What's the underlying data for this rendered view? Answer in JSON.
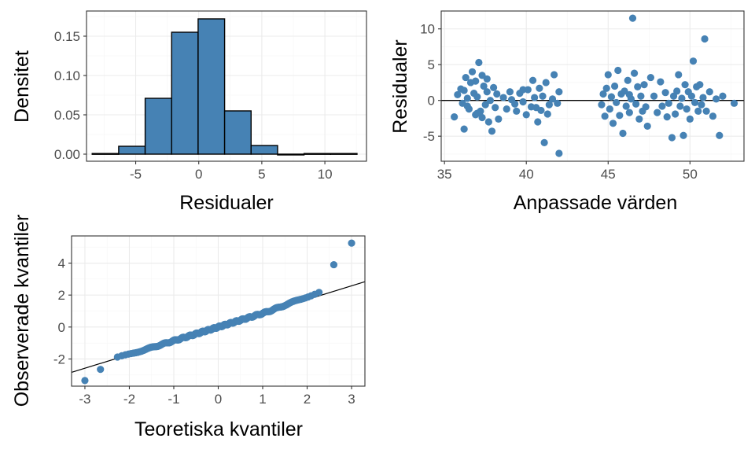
{
  "colors": {
    "accent": "#4682b4",
    "ink": "#000000"
  },
  "chart_data": [
    {
      "type": "bar",
      "subtype": "histogram",
      "xlabel": "Residualer",
      "ylabel": "Densitet",
      "xlim": [
        -8.9,
        13.3
      ],
      "ylim": [
        -0.009,
        0.182
      ],
      "xticks": [
        -5,
        0,
        5,
        10
      ],
      "xtick_labels": [
        "-5",
        "0",
        "5",
        "10"
      ],
      "yticks": [
        0.0,
        0.05,
        0.1,
        0.15
      ],
      "ytick_labels": [
        "0.00",
        "0.05",
        "0.10",
        "0.15"
      ],
      "bins": [
        {
          "x0": -8.45,
          "x1": -6.35,
          "density": 0.0008
        },
        {
          "x0": -6.35,
          "x1": -4.25,
          "density": 0.01
        },
        {
          "x0": -4.25,
          "x1": -2.15,
          "density": 0.071
        },
        {
          "x0": -2.15,
          "x1": -0.05,
          "density": 0.155
        },
        {
          "x0": -0.05,
          "x1": 2.05,
          "density": 0.172
        },
        {
          "x0": 2.05,
          "x1": 4.15,
          "density": 0.055
        },
        {
          "x0": 4.15,
          "x1": 6.25,
          "density": 0.011
        },
        {
          "x0": 6.25,
          "x1": 8.35,
          "density": 0.0
        },
        {
          "x0": 8.35,
          "x1": 10.45,
          "density": 0.0008
        },
        {
          "x0": 10.45,
          "x1": 12.55,
          "density": 0.0008
        }
      ],
      "fill": "#4682b4",
      "grid": true
    },
    {
      "type": "scatter",
      "xlabel": "Anpassade värden",
      "ylabel": "Residualer",
      "xlim": [
        34.8,
        53.3
      ],
      "ylim": [
        -8.5,
        12.5
      ],
      "xticks": [
        35,
        40,
        45,
        50
      ],
      "xtick_labels": [
        "35",
        "40",
        "45",
        "50"
      ],
      "yticks": [
        -5,
        0,
        5,
        10
      ],
      "ytick_labels": [
        "-5",
        "0",
        "5",
        "10"
      ],
      "hline": 0,
      "grid": true,
      "points": [
        [
          35.6,
          -2.3
        ],
        [
          35.8,
          0.8
        ],
        [
          36.0,
          1.6
        ],
        [
          36.1,
          -0.4
        ],
        [
          36.2,
          -4.0
        ],
        [
          36.3,
          3.2
        ],
        [
          36.4,
          0.3
        ],
        [
          36.5,
          -1.2
        ],
        [
          36.6,
          2.5
        ],
        [
          36.7,
          4.0
        ],
        [
          36.8,
          1.0
        ],
        [
          36.9,
          -2.0
        ],
        [
          37.0,
          0.5
        ],
        [
          37.1,
          5.3
        ],
        [
          37.2,
          -1.5
        ],
        [
          37.3,
          3.5
        ],
        [
          37.4,
          2.0
        ],
        [
          37.5,
          -0.6
        ],
        [
          37.6,
          1.2
        ],
        [
          37.7,
          -3.0
        ],
        [
          37.8,
          0.0
        ],
        [
          37.9,
          -4.3
        ],
        [
          38.0,
          1.8
        ],
        [
          38.1,
          -1.0
        ],
        [
          38.2,
          0.9
        ],
        [
          38.3,
          -2.6
        ],
        [
          36.4,
          -0.8
        ],
        [
          36.9,
          2.7
        ],
        [
          37.3,
          -2.4
        ],
        [
          37.6,
          3.0
        ],
        [
          37.0,
          -1.8
        ],
        [
          36.2,
          1.4
        ],
        [
          38.6,
          0.4
        ],
        [
          38.8,
          -1.2
        ],
        [
          39.0,
          1.2
        ],
        [
          39.1,
          0.1
        ],
        [
          39.3,
          -0.5
        ],
        [
          39.4,
          -1.5
        ],
        [
          39.6,
          1.0
        ],
        [
          39.8,
          -0.2
        ],
        [
          40.0,
          -2.0
        ],
        [
          40.1,
          1.5
        ],
        [
          40.3,
          -0.9
        ],
        [
          40.4,
          2.8
        ],
        [
          40.5,
          0.4
        ],
        [
          40.7,
          -3.0
        ],
        [
          40.8,
          1.7
        ],
        [
          40.9,
          -1.4
        ],
        [
          41.0,
          0.6
        ],
        [
          41.1,
          -5.9
        ],
        [
          41.2,
          2.5
        ],
        [
          41.3,
          -1.9
        ],
        [
          41.4,
          -0.6
        ],
        [
          41.6,
          0.2
        ],
        [
          41.7,
          3.6
        ],
        [
          41.9,
          -0.4
        ],
        [
          42.0,
          -7.4
        ],
        [
          42.0,
          1.2
        ],
        [
          39.8,
          1.5
        ],
        [
          40.6,
          -1.0
        ],
        [
          44.6,
          -0.6
        ],
        [
          44.7,
          0.9
        ],
        [
          44.8,
          -2.2
        ],
        [
          44.9,
          1.7
        ],
        [
          45.0,
          3.6
        ],
        [
          45.1,
          -1.2
        ],
        [
          45.2,
          0.5
        ],
        [
          45.3,
          -3.2
        ],
        [
          45.4,
          2.0
        ],
        [
          45.5,
          -0.3
        ],
        [
          45.6,
          4.2
        ],
        [
          45.7,
          -2.1
        ],
        [
          45.8,
          0.9
        ],
        [
          45.9,
          -4.6
        ],
        [
          46.0,
          1.3
        ],
        [
          46.1,
          -0.8
        ],
        [
          46.2,
          2.8
        ],
        [
          46.3,
          -1.7
        ],
        [
          46.4,
          0.2
        ],
        [
          46.5,
          11.5
        ],
        [
          46.6,
          3.8
        ],
        [
          46.7,
          -0.5
        ],
        [
          46.8,
          1.9
        ],
        [
          46.9,
          -2.6
        ],
        [
          47.0,
          0.6
        ],
        [
          47.1,
          -1.5
        ],
        [
          47.2,
          2.2
        ],
        [
          47.4,
          -3.6
        ],
        [
          47.6,
          3.2
        ],
        [
          47.8,
          0.6
        ],
        [
          48.0,
          -1.7
        ],
        [
          48.2,
          2.6
        ],
        [
          48.3,
          -0.8
        ],
        [
          48.5,
          1.1
        ],
        [
          48.6,
          -2.3
        ],
        [
          48.7,
          -0.4
        ],
        [
          48.9,
          -5.2
        ],
        [
          49.0,
          0.6
        ],
        [
          49.1,
          -1.9
        ],
        [
          49.2,
          1.3
        ],
        [
          49.3,
          3.6
        ],
        [
          49.4,
          -0.8
        ],
        [
          49.5,
          0.3
        ],
        [
          49.6,
          -4.9
        ],
        [
          49.7,
          2.2
        ],
        [
          49.8,
          -1.2
        ],
        [
          49.9,
          1.2
        ],
        [
          50.0,
          -2.6
        ],
        [
          50.1,
          0.6
        ],
        [
          50.2,
          5.5
        ],
        [
          50.3,
          -0.3
        ],
        [
          50.4,
          1.9
        ],
        [
          50.5,
          -1.5
        ],
        [
          50.6,
          2.2
        ],
        [
          50.7,
          -0.6
        ],
        [
          50.8,
          0.4
        ],
        [
          50.9,
          8.6
        ],
        [
          51.0,
          -1.5
        ],
        [
          51.2,
          1.2
        ],
        [
          51.4,
          -2.2
        ],
        [
          51.6,
          0.2
        ],
        [
          51.8,
          -4.9
        ],
        [
          52.0,
          0.6
        ],
        [
          52.7,
          -0.4
        ],
        [
          46.3,
          0.8
        ],
        [
          47.3,
          -0.9
        ]
      ]
    },
    {
      "type": "scatter",
      "subtype": "qq",
      "xlabel": "Teoretiska kvantiler",
      "ylabel": "Observerade kvantiler",
      "xlim": [
        -3.3,
        3.3
      ],
      "ylim": [
        -3.7,
        5.7
      ],
      "xticks": [
        -3,
        -2,
        -1,
        0,
        1,
        2,
        3
      ],
      "xtick_labels": [
        "-3",
        "-2",
        "-1",
        "0",
        "1",
        "2",
        "3"
      ],
      "yticks": [
        -2,
        0,
        2,
        4
      ],
      "ytick_labels": [
        "-2",
        "0",
        "2",
        "4"
      ],
      "reference_line": {
        "intercept": 0.0,
        "slope": 0.86
      },
      "grid": true,
      "outliers": [
        [
          -3.0,
          -3.35
        ],
        [
          -2.65,
          -2.65
        ],
        [
          2.6,
          3.9
        ],
        [
          3.0,
          5.25
        ]
      ]
    }
  ]
}
